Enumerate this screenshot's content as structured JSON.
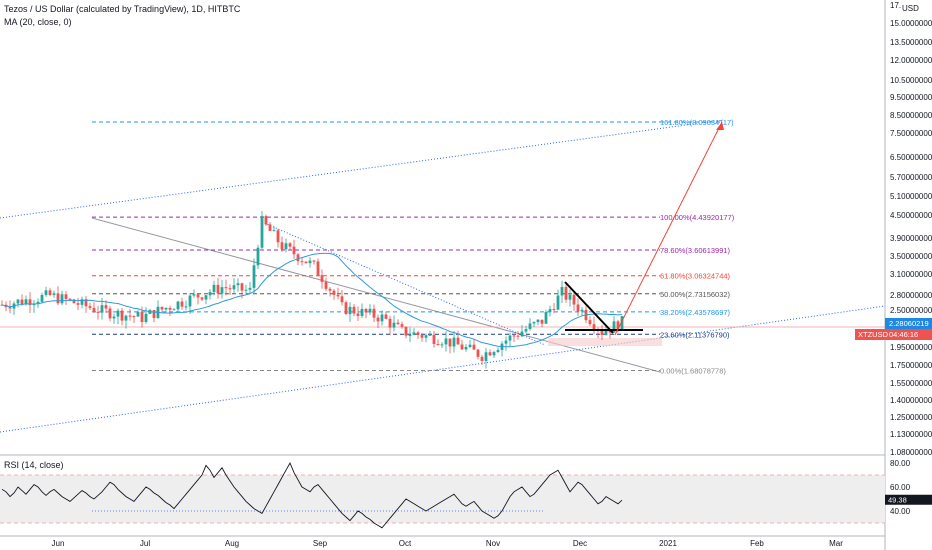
{
  "header": {
    "title": "Tezos / US Dollar (calculated by TradingView), 1D, HITBTC",
    "indicator": "MA (20, close, 0)",
    "rsi_label": "RSI (14, close)"
  },
  "currency_label": "USD",
  "price_badge": {
    "value": "2.28060219",
    "color": "#1e88e5"
  },
  "symbol_badge": {
    "symbol": "XTZUSD",
    "countdown": "04:46:16",
    "color": "#ef5350"
  },
  "rsi_badge": {
    "value": "49.38"
  },
  "chart_data": [
    {
      "type": "candlestick",
      "title": "Tezos / US Dollar (calculated by TradingView), 1D, HITBTC",
      "y_scale": "log",
      "ylim": [
        1.08,
        17.0
      ],
      "y_ticks": [
        "17.",
        "15.00000000",
        "13.50000000",
        "12.00000000",
        "10.50000000",
        "9.50000000",
        "8.50000000",
        "7.50000000",
        "6.50000000",
        "5.70000000",
        "5.10000000",
        "4.50000000",
        "3.90000000",
        "3.50000000",
        "3.10000000",
        "2.80000000",
        "2.50000000",
        "2.20000000",
        "1.95000000",
        "1.75000000",
        "1.55000000",
        "1.40000000",
        "1.25000000",
        "1.13000000",
        "1.08000000"
      ],
      "x_ticks": [
        "Jun",
        "Jul",
        "Aug",
        "Sep",
        "Oct",
        "Nov",
        "Dec",
        "2021",
        "Feb",
        "Mar"
      ],
      "fib_levels": [
        {
          "label": "161.80%(8.09034117)",
          "value": 8.09034117,
          "color": "#2196f3"
        },
        {
          "label": "100.00%(4.43920177)",
          "value": 4.43920177,
          "color": "#9c27b0"
        },
        {
          "label": "78.60%(3.60613991)",
          "value": 3.60613991,
          "color": "#9c27b0"
        },
        {
          "label": "61.80%(3.06324744)",
          "value": 3.06324744,
          "color": "#f44336"
        },
        {
          "label": "50.00%(2.73156032)",
          "value": 2.73156032,
          "color": "#555555"
        },
        {
          "label": "38.20%(2.43578697)",
          "value": 2.43578697,
          "color": "#2196f3"
        },
        {
          "label": "23.60%(2.11376790)",
          "value": 2.1137679,
          "color": "#1a3a8a"
        },
        {
          "label": "0.00%(1.68078778)",
          "value": 1.68078778,
          "color": "#888888"
        }
      ],
      "ma_color": "#2e9bd6",
      "up_color": "#26a69a",
      "down_color": "#ef5350"
    },
    {
      "type": "line",
      "title": "RSI (14, close)",
      "ylim": [
        20,
        90
      ],
      "y_ticks": [
        "80.00",
        "60.00",
        "40.00"
      ],
      "bands": [
        30,
        70
      ],
      "last_value": 49.38,
      "values": [
        58,
        56,
        52,
        55,
        60,
        57,
        54,
        58,
        62,
        60,
        56,
        53,
        56,
        58,
        55,
        52,
        50,
        48,
        51,
        54,
        57,
        55,
        52,
        50,
        53,
        56,
        60,
        64,
        62,
        58,
        55,
        52,
        50,
        48,
        52,
        56,
        60,
        58,
        55,
        53,
        50,
        47,
        45,
        42,
        46,
        50,
        54,
        58,
        62,
        66,
        70,
        78,
        74,
        68,
        72,
        76,
        70,
        65,
        60,
        56,
        52,
        48,
        45,
        42,
        40,
        38,
        44,
        50,
        56,
        62,
        68,
        74,
        80,
        72,
        66,
        60,
        58,
        56,
        60,
        62,
        58,
        54,
        50,
        46,
        42,
        38,
        35,
        32,
        36,
        40,
        38,
        35,
        33,
        30,
        28,
        26,
        30,
        34,
        38,
        42,
        46,
        50,
        48,
        46,
        44,
        42,
        40,
        42,
        44,
        46,
        48,
        50,
        52,
        54,
        50,
        46,
        44,
        46,
        48,
        44,
        40,
        38,
        36,
        34,
        36,
        40,
        46,
        52,
        56,
        58,
        60,
        56,
        52,
        54,
        58,
        62,
        66,
        70,
        72,
        74,
        68,
        62,
        56,
        60,
        64,
        62,
        58,
        54,
        50,
        46,
        48,
        52,
        50,
        48,
        46,
        49
      ]
    }
  ]
}
